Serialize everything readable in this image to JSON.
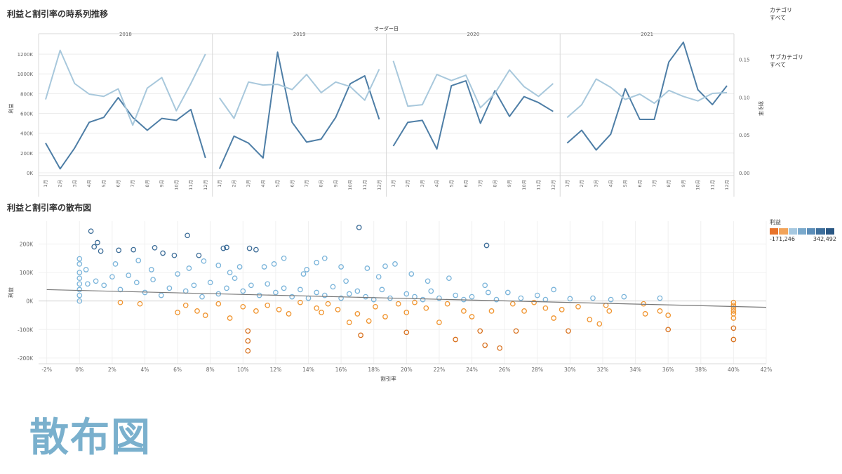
{
  "titles": {
    "line_chart": "利益と割引率の時系列推移",
    "scatter_chart": "利益と割引率の散布図"
  },
  "filters": [
    {
      "label": "カテゴリ",
      "value": "すべて"
    },
    {
      "label": "サブカテゴリ",
      "value": "すべて"
    }
  ],
  "overlay_text": "散布図",
  "legend": {
    "title": "利益",
    "min_label": "-171,246",
    "max_label": "342,492",
    "colors": [
      "#e8732a",
      "#f2a45a",
      "#a6c8e0",
      "#7aa9cc",
      "#5b8db8",
      "#3e6f9c",
      "#2a5783"
    ]
  },
  "colors": {
    "profit_line": "#4e7ea6",
    "discount_line": "#a8c8dc",
    "scatter_positive": "#7ab4da",
    "scatter_negative": "#f0942e",
    "trend_line": "#777777"
  },
  "chart_data": [
    {
      "type": "line",
      "title": "利益と割引率の時系列推移",
      "column_header": "オーダー日",
      "panels": [
        "2018",
        "2019",
        "2020",
        "2021"
      ],
      "categories": [
        "1月",
        "2月",
        "3月",
        "4月",
        "5月",
        "6月",
        "7月",
        "8月",
        "9月",
        "10月",
        "11月",
        "12月"
      ],
      "ylabel": "利益",
      "y2label": "割引率",
      "ylim": [
        0,
        1300000
      ],
      "y2lim": [
        0,
        0.17
      ],
      "yticks": [
        "0K",
        "200K",
        "400K",
        "600K",
        "800K",
        "1000K",
        "1200K"
      ],
      "yticks_values": [
        0,
        200000,
        400000,
        600000,
        800000,
        1000000,
        1200000
      ],
      "y2ticks": [
        "0.00",
        "0.05",
        "0.10",
        "0.15"
      ],
      "y2ticks_values": [
        0,
        0.05,
        0.1,
        0.15
      ],
      "series": [
        {
          "name": "利益",
          "axis": "left",
          "values": [
            [
              300000,
              40000,
              250000,
              510000,
              560000,
              760000,
              560000,
              430000,
              550000,
              530000,
              640000,
              150000
            ],
            [
              40000,
              370000,
              300000,
              150000,
              1220000,
              510000,
              310000,
              340000,
              560000,
              900000,
              980000,
              540000
            ],
            [
              270000,
              510000,
              530000,
              240000,
              880000,
              930000,
              500000,
              830000,
              570000,
              770000,
              710000,
              620000
            ],
            [
              300000,
              430000,
              230000,
              390000,
              850000,
              540000,
              540000,
              1120000,
              1320000,
              840000,
              690000,
              880000
            ]
          ]
        },
        {
          "name": "割引率",
          "axis": "right",
          "values": [
            [
              0.097,
              0.162,
              0.118,
              0.104,
              0.101,
              0.111,
              0.063,
              0.112,
              0.126,
              0.082,
              0.118,
              0.157
            ],
            [
              0.099,
              0.072,
              0.12,
              0.116,
              0.117,
              0.11,
              0.13,
              0.106,
              0.12,
              0.114,
              0.096,
              0.137
            ],
            [
              0.148,
              0.088,
              0.09,
              0.13,
              0.122,
              0.129,
              0.086,
              0.105,
              0.136,
              0.114,
              0.101,
              0.118
            ],
            [
              0.073,
              0.09,
              0.124,
              0.113,
              0.097,
              0.104,
              0.092,
              0.109,
              0.101,
              0.095,
              0.105,
              0.106
            ]
          ]
        }
      ]
    },
    {
      "type": "scatter",
      "title": "利益と割引率の散布図",
      "xlabel": "割引率",
      "ylabel": "利益",
      "xlim": [
        -0.025,
        0.42
      ],
      "ylim": [
        -220000,
        280000
      ],
      "xticks": [
        "-2%",
        "0%",
        "2%",
        "4%",
        "6%",
        "8%",
        "10%",
        "12%",
        "14%",
        "16%",
        "18%",
        "20%",
        "22%",
        "24%",
        "26%",
        "28%",
        "30%",
        "32%",
        "34%",
        "36%",
        "38%",
        "40%",
        "42%"
      ],
      "xticks_values": [
        -0.02,
        0,
        0.02,
        0.04,
        0.06,
        0.08,
        0.1,
        0.12,
        0.14,
        0.16,
        0.18,
        0.2,
        0.22,
        0.24,
        0.26,
        0.28,
        0.3,
        0.32,
        0.34,
        0.36,
        0.38,
        0.4,
        0.42
      ],
      "yticks": [
        "-200K",
        "-100K",
        "0K",
        "100K",
        "200K"
      ],
      "yticks_values": [
        -200000,
        -100000,
        0,
        100000,
        200000
      ],
      "trendline": {
        "x": [
          -0.02,
          0.42
        ],
        "y": [
          40000,
          -22000
        ]
      },
      "legend_title": "利益",
      "color_range": [
        -171246,
        342492
      ],
      "points": [
        [
          0.007,
          245000
        ],
        [
          0.009,
          190000
        ],
        [
          0.011,
          205000
        ],
        [
          0.013,
          175000
        ],
        [
          0.024,
          178000
        ],
        [
          0.033,
          180000
        ],
        [
          0.036,
          142000
        ],
        [
          0.046,
          187000
        ],
        [
          0.051,
          168000
        ],
        [
          0.058,
          160000
        ],
        [
          0.066,
          230000
        ],
        [
          0.073,
          160000
        ],
        [
          0.076,
          140000
        ],
        [
          0.085,
          125000
        ],
        [
          0.088,
          185000
        ],
        [
          0.09,
          188000
        ],
        [
          0.098,
          120000
        ],
        [
          0.104,
          185000
        ],
        [
          0.108,
          180000
        ],
        [
          0.119,
          130000
        ],
        [
          0.125,
          150000
        ],
        [
          0.139,
          110000
        ],
        [
          0.145,
          135000
        ],
        [
          0.15,
          150000
        ],
        [
          0.16,
          120000
        ],
        [
          0.171,
          258000
        ],
        [
          0.176,
          115000
        ],
        [
          0.187,
          122000
        ],
        [
          0.193,
          130000
        ],
        [
          0.203,
          95000
        ],
        [
          0.213,
          70000
        ],
        [
          0.226,
          80000
        ],
        [
          0.249,
          195000
        ],
        [
          0.248,
          55000
        ],
        [
          0.262,
          30000
        ],
        [
          0.28,
          20000
        ],
        [
          0.29,
          40000
        ],
        [
          0.314,
          10000
        ],
        [
          0.325,
          5000
        ],
        [
          0.333,
          15000
        ],
        [
          0.355,
          10000
        ],
        [
          0.0,
          148000
        ],
        [
          0.0,
          130000
        ],
        [
          0.0,
          100000
        ],
        [
          0.0,
          80000
        ],
        [
          0.0,
          60000
        ],
        [
          0.0,
          40000
        ],
        [
          0.0,
          20000
        ],
        [
          0.0,
          0
        ],
        [
          0.005,
          60000
        ],
        [
          0.01,
          70000
        ],
        [
          0.015,
          55000
        ],
        [
          0.02,
          85000
        ],
        [
          0.025,
          40000
        ],
        [
          0.03,
          90000
        ],
        [
          0.035,
          65000
        ],
        [
          0.04,
          30000
        ],
        [
          0.045,
          75000
        ],
        [
          0.05,
          20000
        ],
        [
          0.055,
          45000
        ],
        [
          0.06,
          95000
        ],
        [
          0.065,
          35000
        ],
        [
          0.07,
          55000
        ],
        [
          0.075,
          15000
        ],
        [
          0.08,
          65000
        ],
        [
          0.085,
          25000
        ],
        [
          0.09,
          45000
        ],
        [
          0.095,
          80000
        ],
        [
          0.1,
          35000
        ],
        [
          0.105,
          55000
        ],
        [
          0.11,
          20000
        ],
        [
          0.115,
          60000
        ],
        [
          0.12,
          30000
        ],
        [
          0.125,
          45000
        ],
        [
          0.13,
          15000
        ],
        [
          0.135,
          40000
        ],
        [
          0.14,
          10000
        ],
        [
          0.145,
          30000
        ],
        [
          0.15,
          20000
        ],
        [
          0.155,
          50000
        ],
        [
          0.16,
          10000
        ],
        [
          0.165,
          25000
        ],
        [
          0.17,
          35000
        ],
        [
          0.175,
          15000
        ],
        [
          0.18,
          5000
        ],
        [
          0.185,
          40000
        ],
        [
          0.19,
          10000
        ],
        [
          0.2,
          25000
        ],
        [
          0.205,
          15000
        ],
        [
          0.21,
          5000
        ],
        [
          0.215,
          35000
        ],
        [
          0.22,
          10000
        ],
        [
          0.23,
          20000
        ],
        [
          0.235,
          5000
        ],
        [
          0.24,
          15000
        ],
        [
          0.25,
          30000
        ],
        [
          0.255,
          5000
        ],
        [
          0.27,
          10000
        ],
        [
          0.285,
          5000
        ],
        [
          0.3,
          8000
        ],
        [
          0.004,
          110000
        ],
        [
          0.022,
          130000
        ],
        [
          0.044,
          110000
        ],
        [
          0.067,
          115000
        ],
        [
          0.092,
          100000
        ],
        [
          0.113,
          120000
        ],
        [
          0.137,
          95000
        ],
        [
          0.163,
          70000
        ],
        [
          0.183,
          85000
        ],
        [
          0.025,
          -5000
        ],
        [
          0.037,
          -10000
        ],
        [
          0.06,
          -40000
        ],
        [
          0.065,
          -15000
        ],
        [
          0.072,
          -35000
        ],
        [
          0.077,
          -50000
        ],
        [
          0.085,
          -10000
        ],
        [
          0.092,
          -60000
        ],
        [
          0.1,
          -20000
        ],
        [
          0.103,
          -105000
        ],
        [
          0.103,
          -140000
        ],
        [
          0.103,
          -175000
        ],
        [
          0.108,
          -35000
        ],
        [
          0.115,
          -15000
        ],
        [
          0.122,
          -30000
        ],
        [
          0.128,
          -45000
        ],
        [
          0.135,
          -5000
        ],
        [
          0.145,
          -25000
        ],
        [
          0.148,
          -40000
        ],
        [
          0.152,
          -10000
        ],
        [
          0.158,
          -30000
        ],
        [
          0.165,
          -75000
        ],
        [
          0.17,
          -45000
        ],
        [
          0.172,
          -120000
        ],
        [
          0.177,
          -70000
        ],
        [
          0.181,
          -20000
        ],
        [
          0.187,
          -55000
        ],
        [
          0.195,
          -10000
        ],
        [
          0.2,
          -40000
        ],
        [
          0.2,
          -110000
        ],
        [
          0.205,
          -5000
        ],
        [
          0.212,
          -25000
        ],
        [
          0.22,
          -75000
        ],
        [
          0.225,
          -10000
        ],
        [
          0.23,
          -135000
        ],
        [
          0.235,
          -35000
        ],
        [
          0.24,
          -55000
        ],
        [
          0.245,
          -105000
        ],
        [
          0.248,
          -155000
        ],
        [
          0.252,
          -35000
        ],
        [
          0.257,
          -165000
        ],
        [
          0.265,
          -10000
        ],
        [
          0.267,
          -105000
        ],
        [
          0.272,
          -35000
        ],
        [
          0.278,
          -5000
        ],
        [
          0.285,
          -25000
        ],
        [
          0.29,
          -60000
        ],
        [
          0.295,
          -30000
        ],
        [
          0.299,
          -105000
        ],
        [
          0.305,
          -20000
        ],
        [
          0.312,
          -65000
        ],
        [
          0.318,
          -80000
        ],
        [
          0.322,
          -15000
        ],
        [
          0.324,
          -35000
        ],
        [
          0.345,
          -10000
        ],
        [
          0.346,
          -45000
        ],
        [
          0.355,
          -35000
        ],
        [
          0.36,
          -100000
        ],
        [
          0.36,
          -50000
        ],
        [
          0.4,
          -5000
        ],
        [
          0.4,
          -15000
        ],
        [
          0.4,
          -35000
        ],
        [
          0.4,
          -60000
        ],
        [
          0.4,
          -95000
        ],
        [
          0.4,
          -135000
        ],
        [
          0.4,
          -25000
        ],
        [
          0.4,
          -45000
        ]
      ]
    }
  ]
}
